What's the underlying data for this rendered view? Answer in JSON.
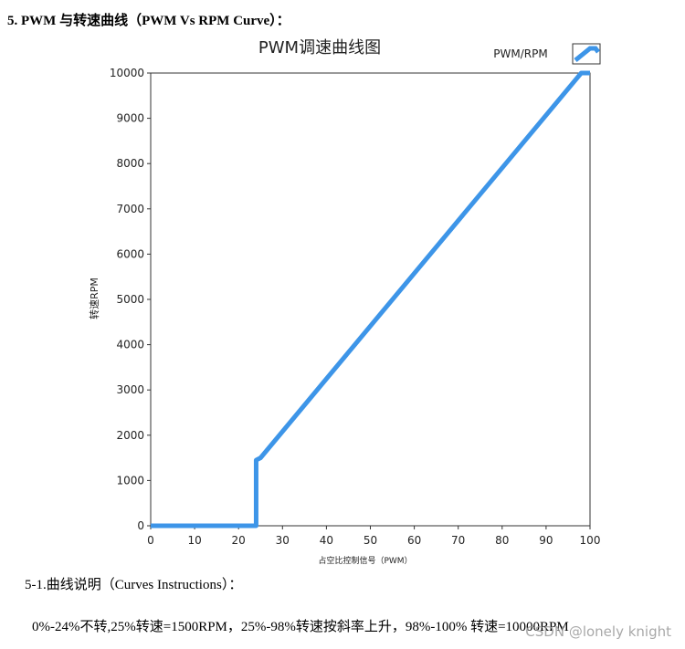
{
  "heading": "5. PWM 与转速曲线（PWM Vs RPM Curve）：",
  "chart_data": {
    "type": "line",
    "title": "PWM调速曲线图",
    "x_label": "占空比控制信号（PWM）",
    "y_label": "转速RPM",
    "x": [
      0,
      24,
      24,
      25,
      98,
      100
    ],
    "series": [
      {
        "name": "PWM/RPM",
        "color": "#3d95e8",
        "values": [
          0,
          0,
          1450,
          1500,
          10000,
          10000
        ]
      }
    ],
    "xlim": [
      0,
      100
    ],
    "xticks": [
      0,
      10,
      20,
      30,
      40,
      50,
      60,
      70,
      80,
      90,
      100
    ],
    "ylim": [
      0,
      10000
    ],
    "yticks": [
      0,
      1000,
      2000,
      3000,
      4000,
      5000,
      6000,
      7000,
      8000,
      9000,
      10000
    ],
    "grid": false,
    "legend": "top-right"
  },
  "subheading": "5-1.曲线说明（Curves Instructions）：",
  "paragraph": "0%-24%不转,25%转速=1500RPM，25%-98%转速按斜率上升，98%-100%  转速=10000RPM",
  "watermark": "CSDN @lonely knight"
}
